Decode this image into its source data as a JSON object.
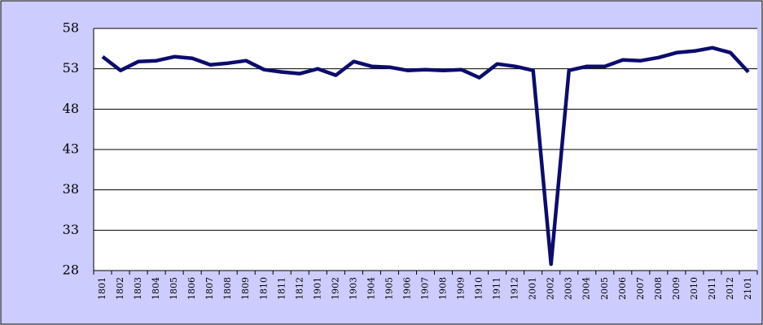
{
  "chart_data": {
    "type": "line",
    "categories": [
      "1801",
      "1802",
      "1803",
      "1804",
      "1805",
      "1806",
      "1807",
      "1808",
      "1809",
      "1810",
      "1811",
      "1812",
      "1901",
      "1902",
      "1903",
      "1904",
      "1905",
      "1906",
      "1907",
      "1908",
      "1909",
      "1910",
      "1911",
      "1912",
      "2001",
      "2002",
      "2003",
      "2004",
      "2005",
      "2006",
      "2007",
      "2008",
      "2009",
      "2010",
      "2011",
      "2012",
      "2101"
    ],
    "values": [
      54.5,
      52.8,
      53.9,
      54.0,
      54.5,
      54.3,
      53.5,
      53.7,
      54.0,
      52.9,
      52.6,
      52.4,
      53.0,
      52.2,
      53.9,
      53.3,
      53.2,
      52.8,
      52.9,
      52.8,
      52.9,
      51.9,
      53.6,
      53.3,
      52.8,
      28.8,
      52.8,
      53.3,
      53.3,
      54.1,
      54.0,
      54.4,
      55.0,
      55.2,
      55.6,
      55.0,
      52.6
    ],
    "color": "#0c0c6e",
    "ylim": [
      28,
      58
    ],
    "yticks": [
      28,
      33,
      38,
      43,
      48,
      53,
      58
    ],
    "grid": true
  }
}
